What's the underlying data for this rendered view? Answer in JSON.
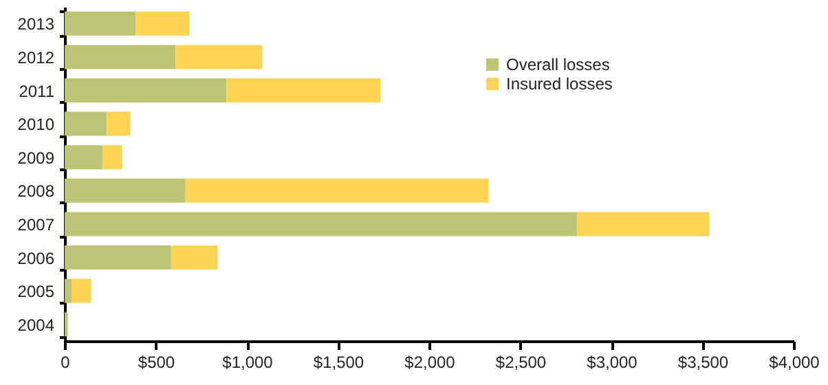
{
  "chart_data": {
    "type": "bar",
    "orientation": "horizontal",
    "stacked": true,
    "categories": [
      "2013",
      "2012",
      "2011",
      "2010",
      "2009",
      "2008",
      "2007",
      "2006",
      "2005",
      "2004"
    ],
    "series": [
      {
        "name": "Overall losses",
        "color": "#bdc473",
        "values": [
          390,
          609,
          888,
          231,
          209,
          663,
          2811,
          584,
          38,
          17
        ]
      },
      {
        "name": "Insured losses",
        "color": "#ffd454",
        "values": [
          294,
          475,
          845,
          129,
          106,
          1663,
          727,
          256,
          107,
          0
        ]
      }
    ],
    "xlim": [
      0,
      4000
    ],
    "xticks": [
      0,
      {
        "value": 500,
        "label": "$500"
      },
      {
        "value": 1000,
        "label": "$1,000"
      },
      {
        "value": 1500,
        "label": "$1,500"
      },
      {
        "value": 2000,
        "label": "$2,000"
      },
      {
        "value": 2500,
        "label": "$2,500"
      },
      {
        "value": 3000,
        "label": "$3,000"
      },
      {
        "value": 3500,
        "label": "$3,500"
      },
      {
        "value": 4000,
        "label": "$4,000"
      }
    ],
    "grid": false,
    "legend": "top right"
  }
}
